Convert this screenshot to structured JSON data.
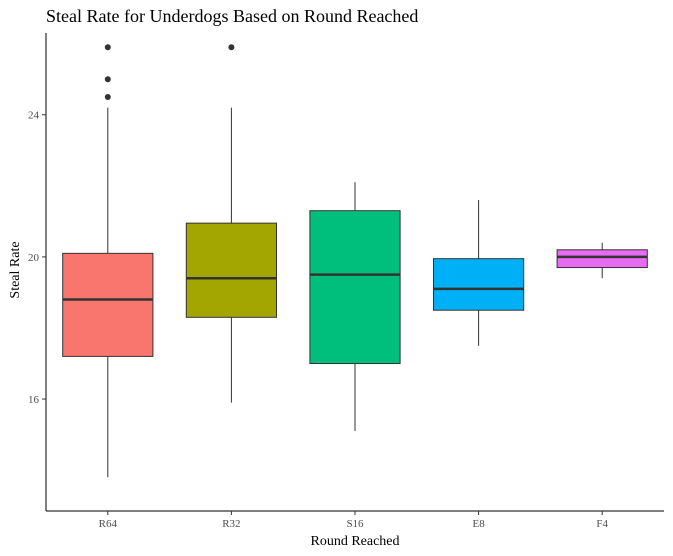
{
  "chart_data": {
    "type": "box",
    "title": "Steal Rate for Underdogs Based on Round Reached",
    "xlabel": "Round Reached",
    "ylabel": "Steal Rate",
    "ylim": [
      12.85,
      26.3
    ],
    "yticks": [
      16,
      20,
      24
    ],
    "grid": false,
    "legend": "none",
    "categories": [
      "R64",
      "R32",
      "S16",
      "E8",
      "F4"
    ],
    "boxes": [
      {
        "category": "R64",
        "min": 13.8,
        "q1": 17.2,
        "median": 18.8,
        "q3": 20.1,
        "max": 24.2,
        "outliers": [
          24.5,
          25.0,
          25.9
        ],
        "color": "#F8766D"
      },
      {
        "category": "R32",
        "min": 15.9,
        "q1": 18.3,
        "median": 19.4,
        "q3": 20.95,
        "max": 24.2,
        "outliers": [
          25.9
        ],
        "color": "#A3A500"
      },
      {
        "category": "S16",
        "min": 15.1,
        "q1": 17.0,
        "median": 19.5,
        "q3": 21.3,
        "max": 22.1,
        "outliers": [],
        "color": "#00BF7D"
      },
      {
        "category": "E8",
        "min": 17.5,
        "q1": 18.5,
        "median": 19.1,
        "q3": 19.95,
        "max": 21.6,
        "outliers": [],
        "color": "#00B0F6"
      },
      {
        "category": "F4",
        "min": 19.4,
        "q1": 19.7,
        "median": 20.0,
        "q3": 20.2,
        "max": 20.4,
        "outliers": [],
        "color": "#E76BF3"
      }
    ]
  }
}
